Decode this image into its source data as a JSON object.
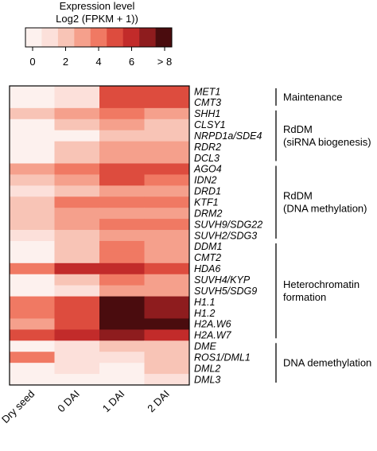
{
  "chart_data": {
    "type": "heatmap",
    "colorbar": {
      "title_line1": "Expression level",
      "title_line2": "Log2 (FPKM + 1))",
      "tick_labels": [
        "0",
        "2",
        "4",
        "6",
        "> 8"
      ],
      "tick_values": [
        0,
        2,
        4,
        6,
        8
      ],
      "bins": 9,
      "range": [
        0,
        8
      ]
    },
    "columns": [
      "Dry seed",
      "0 DAI",
      "1 DAI",
      "2 DAI"
    ],
    "genes": [
      "MET1",
      "CMT3",
      "SHH1",
      "CLSY1",
      "NRPD1a/SDE4",
      "RDR2",
      "DCL3",
      "AGO4",
      "IDN2",
      "DRD1",
      "KTF1",
      "DRM2",
      "SUVH9/SDG22",
      "SUVH2/SDG3",
      "DDM1",
      "CMT2",
      "HDA6",
      "SUVH4/KYP",
      "SUVH5/SDG9",
      "H1.1",
      "H1.2",
      "H2A.W6",
      "H2A.W7",
      "DME",
      "ROS1/DML1",
      "DML2",
      "DML3"
    ],
    "values": [
      [
        0.5,
        1.5,
        5.5,
        5.5
      ],
      [
        0.5,
        1.5,
        5.5,
        5.5
      ],
      [
        2.5,
        3.0,
        4.0,
        3.0
      ],
      [
        0.5,
        2.0,
        3.5,
        2.5
      ],
      [
        0.5,
        0.5,
        2.5,
        2.0
      ],
      [
        0.5,
        2.0,
        3.0,
        3.0
      ],
      [
        0.5,
        2.0,
        3.0,
        3.0
      ],
      [
        3.5,
        4.5,
        5.5,
        5.0
      ],
      [
        2.0,
        3.5,
        5.0,
        4.0
      ],
      [
        1.5,
        2.0,
        3.5,
        3.5
      ],
      [
        2.5,
        4.0,
        4.5,
        4.0
      ],
      [
        2.5,
        3.0,
        3.5,
        3.5
      ],
      [
        2.5,
        3.0,
        4.5,
        4.0
      ],
      [
        1.5,
        2.0,
        3.5,
        3.0
      ],
      [
        0.5,
        2.5,
        4.0,
        3.0
      ],
      [
        0.5,
        2.0,
        4.0,
        3.5
      ],
      [
        4.5,
        6.0,
        6.5,
        5.5
      ],
      [
        0.5,
        2.0,
        4.0,
        3.5
      ],
      [
        0.5,
        1.5,
        3.5,
        3.0
      ],
      [
        4.0,
        5.0,
        8.0,
        7.0
      ],
      [
        4.5,
        5.5,
        9.0,
        7.5
      ],
      [
        3.5,
        5.0,
        8.0,
        8.5
      ],
      [
        5.5,
        6.0,
        7.0,
        6.5
      ],
      [
        0.5,
        1.5,
        2.5,
        2.0
      ],
      [
        4.0,
        1.5,
        1.5,
        2.0
      ],
      [
        0.5,
        1.0,
        0.5,
        2.5
      ],
      [
        0.5,
        0.5,
        0.5,
        1.0
      ]
    ],
    "groups": [
      {
        "label_lines": [
          "Maintenance"
        ],
        "first": 0,
        "last": 1
      },
      {
        "label_lines": [
          "RdDM",
          "(siRNA biogenesis)"
        ],
        "first": 2,
        "last": 6
      },
      {
        "label_lines": [
          "RdDM",
          "(DNA methylation)"
        ],
        "first": 7,
        "last": 13
      },
      {
        "label_lines": [
          "Heterochromatin",
          "formation"
        ],
        "first": 14,
        "last": 22
      },
      {
        "label_lines": [
          "DNA demethylation"
        ],
        "first": 23,
        "last": 26
      }
    ],
    "palette": [
      "#fdf1ee",
      "#fce0da",
      "#f8c4b6",
      "#f5a08c",
      "#f07963",
      "#dd4c3e",
      "#c22b2a",
      "#8e1c1e",
      "#4a0c0e"
    ]
  }
}
